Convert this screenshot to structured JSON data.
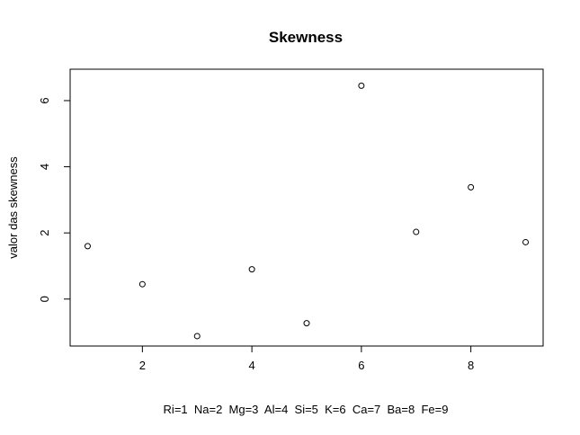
{
  "chart_data": {
    "type": "scatter",
    "title": "Skewness",
    "xlabel": "Ri=1  Na=2  Mg=3  Al=4  Si=5  K=6  Ca=7  Ba=8  Fe=9",
    "ylabel": "valor das skewness",
    "x": [
      1,
      2,
      3,
      4,
      5,
      6,
      7,
      8,
      9
    ],
    "y": [
      1.6,
      0.45,
      -1.12,
      0.9,
      -0.73,
      6.45,
      2.03,
      3.38,
      1.72
    ],
    "x_ticks": [
      2,
      4,
      6,
      8
    ],
    "y_ticks": [
      0,
      2,
      4,
      6
    ],
    "xlim": [
      0.68,
      9.32
    ],
    "ylim": [
      -1.42,
      6.95
    ],
    "grid": false,
    "marker": "open-circle",
    "colors": {
      "point": "#000000",
      "axis": "#000000"
    }
  }
}
